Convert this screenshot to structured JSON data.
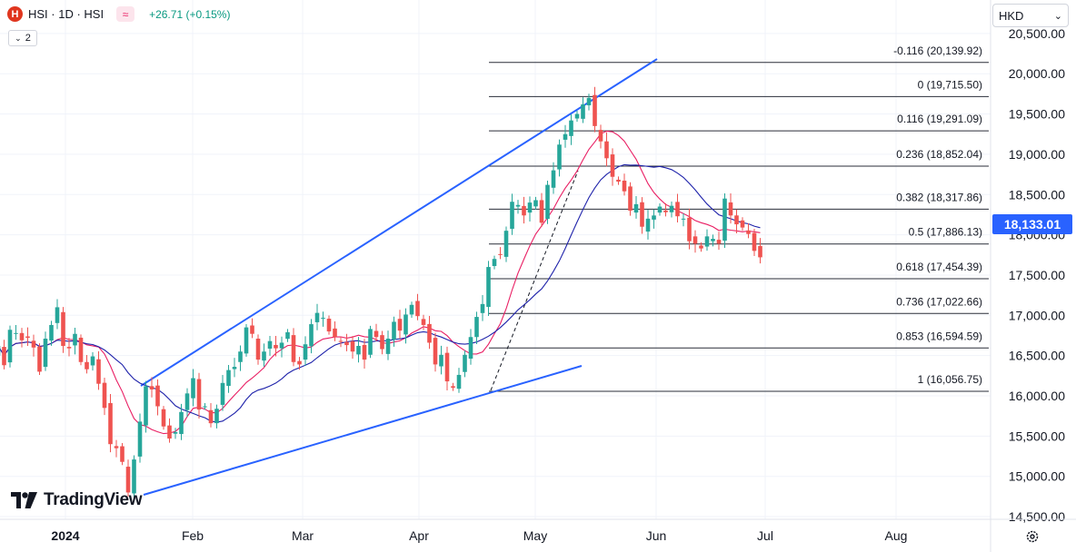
{
  "header": {
    "symbol_badge": "H",
    "symbol_title": "HSI · 1D · HSI",
    "change": "+26.71 (+0.15%)",
    "indicator_count": "2",
    "currency": "HKD"
  },
  "brand": {
    "name": "TradingView"
  },
  "colors": {
    "up": "#26a69a",
    "down": "#ef5350",
    "ma_fast": "#e91e63",
    "ma_slow": "#1e22aa",
    "trend": "#2962ff",
    "price_badge": "#2962ff"
  },
  "icons": [
    "symbol-logo-icon",
    "wave-icon",
    "chevron-down-icon",
    "tradingview-logo-icon",
    "settings-gear-icon"
  ],
  "chart_data": {
    "type": "candlestick",
    "y_axis": {
      "ticks": [
        14500,
        15000,
        15500,
        16000,
        16500,
        17000,
        17500,
        18000,
        18500,
        19000,
        19500,
        20000,
        20500
      ],
      "tick_labels": [
        "14,500.00",
        "15,000.00",
        "15,500.00",
        "16,000.00",
        "16,500.00",
        "17,000.00",
        "17,500.00",
        "18,000.00",
        "18,500.00",
        "19,000.00",
        "19,500.00",
        "20,000.00",
        "20,500.00"
      ],
      "ylim": [
        14500,
        20500
      ]
    },
    "x_axis": {
      "labels": [
        "2024",
        "Feb",
        "Mar",
        "Apr",
        "May",
        "Jun",
        "Jul",
        "Aug"
      ]
    },
    "last_price": "18,133.01",
    "fibonacci": [
      {
        "ratio": "-0.116",
        "price": 20139.92,
        "label": "-0.116 (20,139.92)"
      },
      {
        "ratio": "0",
        "price": 19715.5,
        "label": "0 (19,715.50)"
      },
      {
        "ratio": "0.116",
        "price": 19291.09,
        "label": "0.116 (19,291.09)"
      },
      {
        "ratio": "0.236",
        "price": 18852.04,
        "label": "0.236 (18,852.04)"
      },
      {
        "ratio": "0.382",
        "price": 18317.86,
        "label": "0.382 (18,317.86)"
      },
      {
        "ratio": "0.5",
        "price": 17886.13,
        "label": "0.5 (17,886.13)"
      },
      {
        "ratio": "0.618",
        "price": 17454.39,
        "label": "0.618 (17,454.39)"
      },
      {
        "ratio": "0.736",
        "price": 17022.66,
        "label": "0.736 (17,022.66)"
      },
      {
        "ratio": "0.853",
        "price": 16594.59,
        "label": "0.853 (16,594.59)"
      },
      {
        "ratio": "1",
        "price": 16056.75,
        "label": "1 (16,056.75)"
      }
    ],
    "closes": [
      16620,
      16380,
      16820,
      16780,
      16690,
      16720,
      16600,
      16300,
      16710,
      16880,
      17100,
      16620,
      16590,
      16770,
      16420,
      16330,
      16490,
      16150,
      15850,
      15400,
      15350,
      15180,
      14800,
      15210,
      15680,
      16120,
      16080,
      15870,
      15620,
      15470,
      15550,
      15800,
      16030,
      16220,
      15830,
      15870,
      15660,
      15840,
      16160,
      16320,
      16360,
      16550,
      16850,
      16770,
      16450,
      16550,
      16680,
      16590,
      16660,
      16790,
      16420,
      16390,
      16640,
      16890,
      17030,
      16970,
      16800,
      16730,
      16670,
      16630,
      16550,
      16620,
      16450,
      16830,
      16730,
      16580,
      16710,
      16920,
      16810,
      17010,
      17130,
      16990,
      16880,
      16660,
      16390,
      16510,
      16180,
      16100,
      16260,
      16510,
      16730,
      16980,
      17140,
      17600,
      17700,
      17750,
      18050,
      18410,
      18370,
      18240,
      18400,
      18430,
      18150,
      18620,
      18800,
      19120,
      19250,
      19420,
      19500,
      19620,
      19700,
      19350,
      19160,
      18950,
      18720,
      18660,
      18540,
      18300,
      18380,
      18100,
      18200,
      18240,
      18350,
      18280,
      18360,
      18230,
      18200,
      17920,
      17890,
      17830,
      17980,
      17950,
      17890,
      18450,
      18240,
      18130,
      18090,
      18010,
      17800,
      17720
    ]
  }
}
